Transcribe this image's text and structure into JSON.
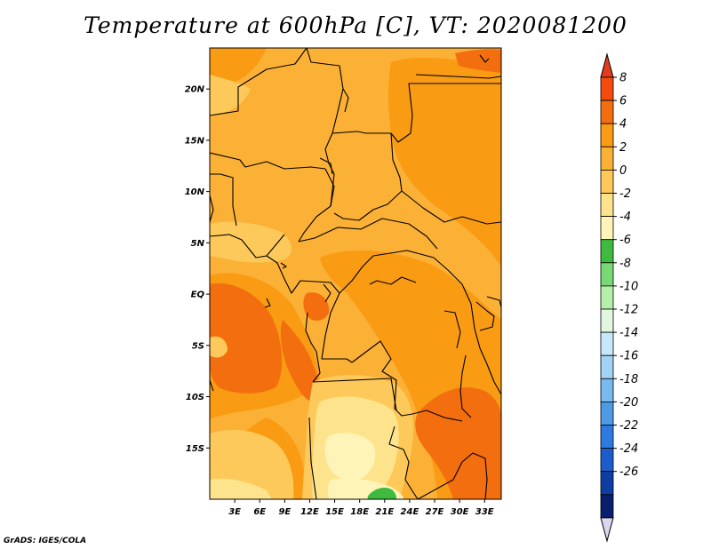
{
  "title": "Temperature at 600hPa [C], VT: 2020081200",
  "credit": "GrADS: IGES/COLA",
  "map": {
    "projection": "latlon",
    "lon_range": [
      0,
      35
    ],
    "lat_range": [
      -20,
      24
    ],
    "x_ticks": [
      {
        "label": "3E",
        "lon": 3
      },
      {
        "label": "6E",
        "lon": 6
      },
      {
        "label": "9E",
        "lon": 9
      },
      {
        "label": "12E",
        "lon": 12
      },
      {
        "label": "15E",
        "lon": 15
      },
      {
        "label": "18E",
        "lon": 18
      },
      {
        "label": "21E",
        "lon": 21
      },
      {
        "label": "24E",
        "lon": 24
      },
      {
        "label": "27E",
        "lon": 27
      },
      {
        "label": "30E",
        "lon": 30
      },
      {
        "label": "33E",
        "lon": 33
      }
    ],
    "y_ticks": [
      {
        "label": "20N",
        "lat": 20
      },
      {
        "label": "15N",
        "lat": 15
      },
      {
        "label": "10N",
        "lat": 10
      },
      {
        "label": "5N",
        "lat": 5
      },
      {
        "label": "EQ",
        "lat": 0
      },
      {
        "label": "5S",
        "lat": -5
      },
      {
        "label": "10S",
        "lat": -10
      },
      {
        "label": "15S",
        "lat": -15
      }
    ],
    "fill_colors": {
      "2_to_4": "#fbb036",
      "4_to_6": "#f99b13",
      "6_to_8": "#f26e0f",
      "0_to_2": "#fdc95a",
      "minus2_to_0": "#fde38c",
      "minus4_to_minus2": "#fef4b8",
      "minus6_to_minus4": "#3ebb3e"
    }
  },
  "colorbar": {
    "labels": [
      "8",
      "6",
      "4",
      "2",
      "0",
      "-2",
      "-4",
      "-6",
      "-8",
      "-10",
      "-12",
      "-14",
      "-16",
      "-18",
      "-20",
      "-22",
      "-24",
      "-26"
    ],
    "colors": [
      "#f54b0e",
      "#f26e0f",
      "#f99b13",
      "#fbb036",
      "#fdc95a",
      "#fde38c",
      "#fef4b8",
      "#3ebb3e",
      "#78d874",
      "#b4efaa",
      "#e1f7df",
      "#c7e8fa",
      "#a2d3f5",
      "#78b9ee",
      "#4e9be5",
      "#2d7be0",
      "#1a5dcb",
      "#0f3ea3",
      "#0a1e6e"
    ],
    "top_arrow_color": "#e23b1e",
    "bottom_arrow_color": "#dcd7f1"
  }
}
